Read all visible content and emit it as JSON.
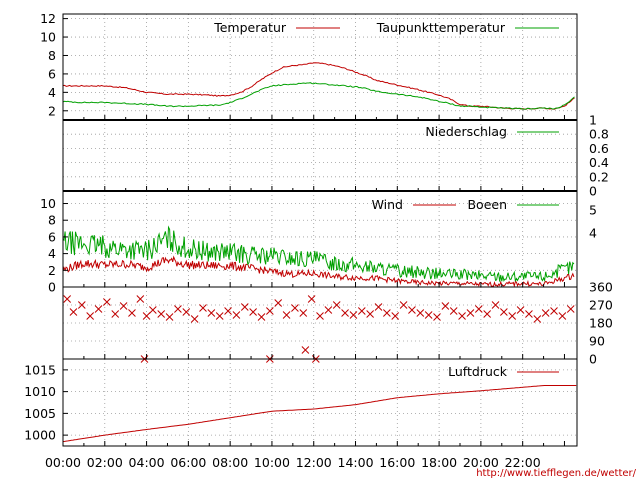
{
  "colors": {
    "temperature": "#c00000",
    "dewpoint": "#00a000",
    "rain": "#00a000",
    "wind": "#c00000",
    "gust": "#00a000",
    "direction": "#c00000",
    "pressure": "#c00000",
    "grid": "#9a9a9a",
    "frame": "#000000"
  },
  "credit": "http://www.tiefflegen.de/wetter/",
  "chart_data": [
    {
      "id": "temp",
      "type": "line",
      "title": "",
      "xlabel": "",
      "ylabel": "",
      "x_unit": "hour",
      "xlim": [
        0,
        24.6
      ],
      "ylim": [
        1,
        12.5
      ],
      "yticks": [
        2,
        4,
        6,
        8,
        10,
        12
      ],
      "grid": true,
      "legend": "top-right",
      "series": [
        {
          "name": "Temperatur",
          "color": "#c00000",
          "x": [
            0,
            1,
            2,
            3,
            4,
            4.5,
            5,
            6,
            7,
            7.5,
            8,
            8.5,
            9,
            9.5,
            10,
            10.5,
            11,
            11.5,
            12,
            12.5,
            13,
            13.5,
            14,
            14.5,
            15,
            16,
            17,
            17.5,
            18,
            18.5,
            19,
            19.5,
            20,
            21,
            22,
            23,
            23.5,
            24,
            24.5
          ],
          "y": [
            4.7,
            4.7,
            4.7,
            4.5,
            4.0,
            3.9,
            3.8,
            3.8,
            3.7,
            3.6,
            3.7,
            4.0,
            4.6,
            5.4,
            6.1,
            6.7,
            6.9,
            7.0,
            7.2,
            7.1,
            6.9,
            6.6,
            6.2,
            5.8,
            5.3,
            4.8,
            4.3,
            4.0,
            3.7,
            3.3,
            2.7,
            2.5,
            2.5,
            2.3,
            2.2,
            2.3,
            2.2,
            2.5,
            3.4
          ]
        },
        {
          "name": "Taupunkttemperatur",
          "color": "#00a000",
          "x": [
            0,
            1,
            2,
            3,
            4,
            4.5,
            5,
            6,
            7,
            7.5,
            8,
            8.5,
            9,
            9.5,
            10,
            10.5,
            11,
            11.5,
            12,
            12.5,
            13,
            13.5,
            14,
            14.5,
            15,
            16,
            17,
            17.5,
            18,
            18.5,
            19,
            19.5,
            20,
            21,
            22,
            23,
            23.5,
            24,
            24.5
          ],
          "y": [
            3.0,
            2.9,
            2.9,
            2.8,
            2.7,
            2.6,
            2.5,
            2.5,
            2.6,
            2.6,
            2.9,
            3.3,
            3.8,
            4.3,
            4.7,
            4.8,
            4.9,
            5.0,
            5.0,
            4.9,
            4.8,
            4.7,
            4.6,
            4.4,
            4.1,
            3.8,
            3.5,
            3.3,
            3.0,
            2.8,
            2.5,
            2.5,
            2.4,
            2.3,
            2.2,
            2.3,
            2.2,
            2.6,
            3.5
          ]
        }
      ]
    },
    {
      "id": "rain",
      "type": "line",
      "title": "",
      "xlim": [
        0,
        24.6
      ],
      "ylim": [
        0,
        1
      ],
      "y2ticks": [
        "1",
        "0.8",
        "0.6",
        "0.4",
        "0.2",
        "0"
      ],
      "grid": true,
      "legend": "top-right",
      "series": [
        {
          "name": "Niederschlag",
          "color": "#00a000",
          "x": [
            0,
            24.6
          ],
          "y": [
            0,
            0
          ]
        }
      ]
    },
    {
      "id": "wind",
      "type": "line",
      "title": "",
      "xlim": [
        0,
        24.6
      ],
      "ylim": [
        0,
        11.5
      ],
      "yticks": [
        0,
        2,
        4,
        6,
        8,
        10
      ],
      "y2ticks": [
        "5",
        "4"
      ],
      "grid": true,
      "legend": "top-right",
      "series": [
        {
          "name": "Wind",
          "color": "#c00000",
          "x": [
            0,
            1,
            2,
            3,
            4,
            5,
            6,
            7,
            8,
            9,
            10,
            11,
            12,
            13,
            14,
            15,
            16,
            17,
            18,
            19,
            20,
            21,
            22,
            23,
            24.5
          ],
          "y": [
            2.0,
            2.8,
            2.6,
            2.7,
            2.3,
            3.2,
            2.6,
            2.5,
            2.5,
            2.2,
            1.8,
            1.5,
            1.6,
            1.2,
            1.1,
            1.0,
            0.7,
            0.5,
            0.4,
            0.4,
            0.3,
            0.3,
            0.4,
            0.3,
            1.4
          ]
        },
        {
          "name": "Boeen",
          "color": "#00a000",
          "x": [
            0,
            1,
            2,
            3,
            4,
            5,
            6,
            7,
            8,
            9,
            10,
            11,
            12,
            13,
            14,
            15,
            16,
            17,
            18,
            19,
            20,
            21,
            22,
            23,
            24.5
          ],
          "y": [
            5.2,
            5.0,
            4.7,
            4.4,
            4.2,
            5.6,
            4.4,
            4.1,
            4.0,
            3.7,
            3.6,
            3.3,
            3.2,
            2.8,
            2.5,
            2.2,
            1.9,
            1.7,
            1.5,
            1.4,
            1.3,
            1.2,
            1.2,
            1.2,
            2.5
          ]
        }
      ]
    },
    {
      "id": "winddir",
      "type": "scatter",
      "title": "",
      "xlim": [
        0,
        24.6
      ],
      "ylim": [
        0,
        360
      ],
      "y2ticks": [
        "360",
        "270",
        "180",
        "90",
        "0"
      ],
      "grid": true,
      "series": [
        {
          "name": "",
          "color": "#c00000",
          "x": [
            0.2,
            0.5,
            0.9,
            1.3,
            1.7,
            2.1,
            2.5,
            2.9,
            3.3,
            3.7,
            4.0,
            4.3,
            4.7,
            5.1,
            5.5,
            5.9,
            6.3,
            6.7,
            7.1,
            7.5,
            7.9,
            8.3,
            8.7,
            9.1,
            9.5,
            9.9,
            10.3,
            10.7,
            11.1,
            11.5,
            11.9,
            12.3,
            12.7,
            13.1,
            13.5,
            13.9,
            14.3,
            14.7,
            15.1,
            15.5,
            15.9,
            16.3,
            16.7,
            17.1,
            17.5,
            17.9,
            18.3,
            18.7,
            19.1,
            19.5,
            19.9,
            20.3,
            20.7,
            21.1,
            21.5,
            21.9,
            22.3,
            22.7,
            23.1,
            23.5,
            23.9,
            24.3,
            3.9,
            9.9,
            11.6,
            12.1
          ],
          "y": [
            300,
            235,
            270,
            215,
            250,
            285,
            225,
            265,
            230,
            300,
            215,
            245,
            225,
            210,
            250,
            235,
            200,
            255,
            230,
            215,
            240,
            220,
            260,
            235,
            210,
            240,
            280,
            220,
            255,
            230,
            300,
            215,
            245,
            270,
            230,
            220,
            240,
            225,
            260,
            230,
            215,
            270,
            245,
            230,
            220,
            210,
            265,
            240,
            215,
            230,
            250,
            225,
            270,
            235,
            215,
            245,
            225,
            200,
            230,
            240,
            215,
            250,
            0,
            0,
            45,
            0
          ]
        }
      ]
    },
    {
      "id": "pressure",
      "type": "line",
      "title": "",
      "xlim": [
        0,
        24.6
      ],
      "ylim": [
        997.5,
        1017.5
      ],
      "yticks": [
        1000,
        1005,
        1010,
        1015
      ],
      "xticks": [
        "00:00",
        "02:00",
        "04:00",
        "06:00",
        "08:00",
        "10:00",
        "12:00",
        "14:00",
        "16:00",
        "18:00",
        "20:00",
        "22:00"
      ],
      "grid": true,
      "legend": "top-right",
      "series": [
        {
          "name": "Luftdruck",
          "color": "#c00000",
          "x": [
            0,
            2,
            4,
            6,
            8,
            10,
            12,
            14,
            16,
            18,
            20,
            22,
            23,
            24.6
          ],
          "y": [
            998.5,
            1000.0,
            1001.3,
            1002.5,
            1004.0,
            1005.5,
            1006.0,
            1007.0,
            1008.6,
            1009.5,
            1010.2,
            1011.0,
            1011.4,
            1011.4
          ]
        }
      ]
    }
  ]
}
